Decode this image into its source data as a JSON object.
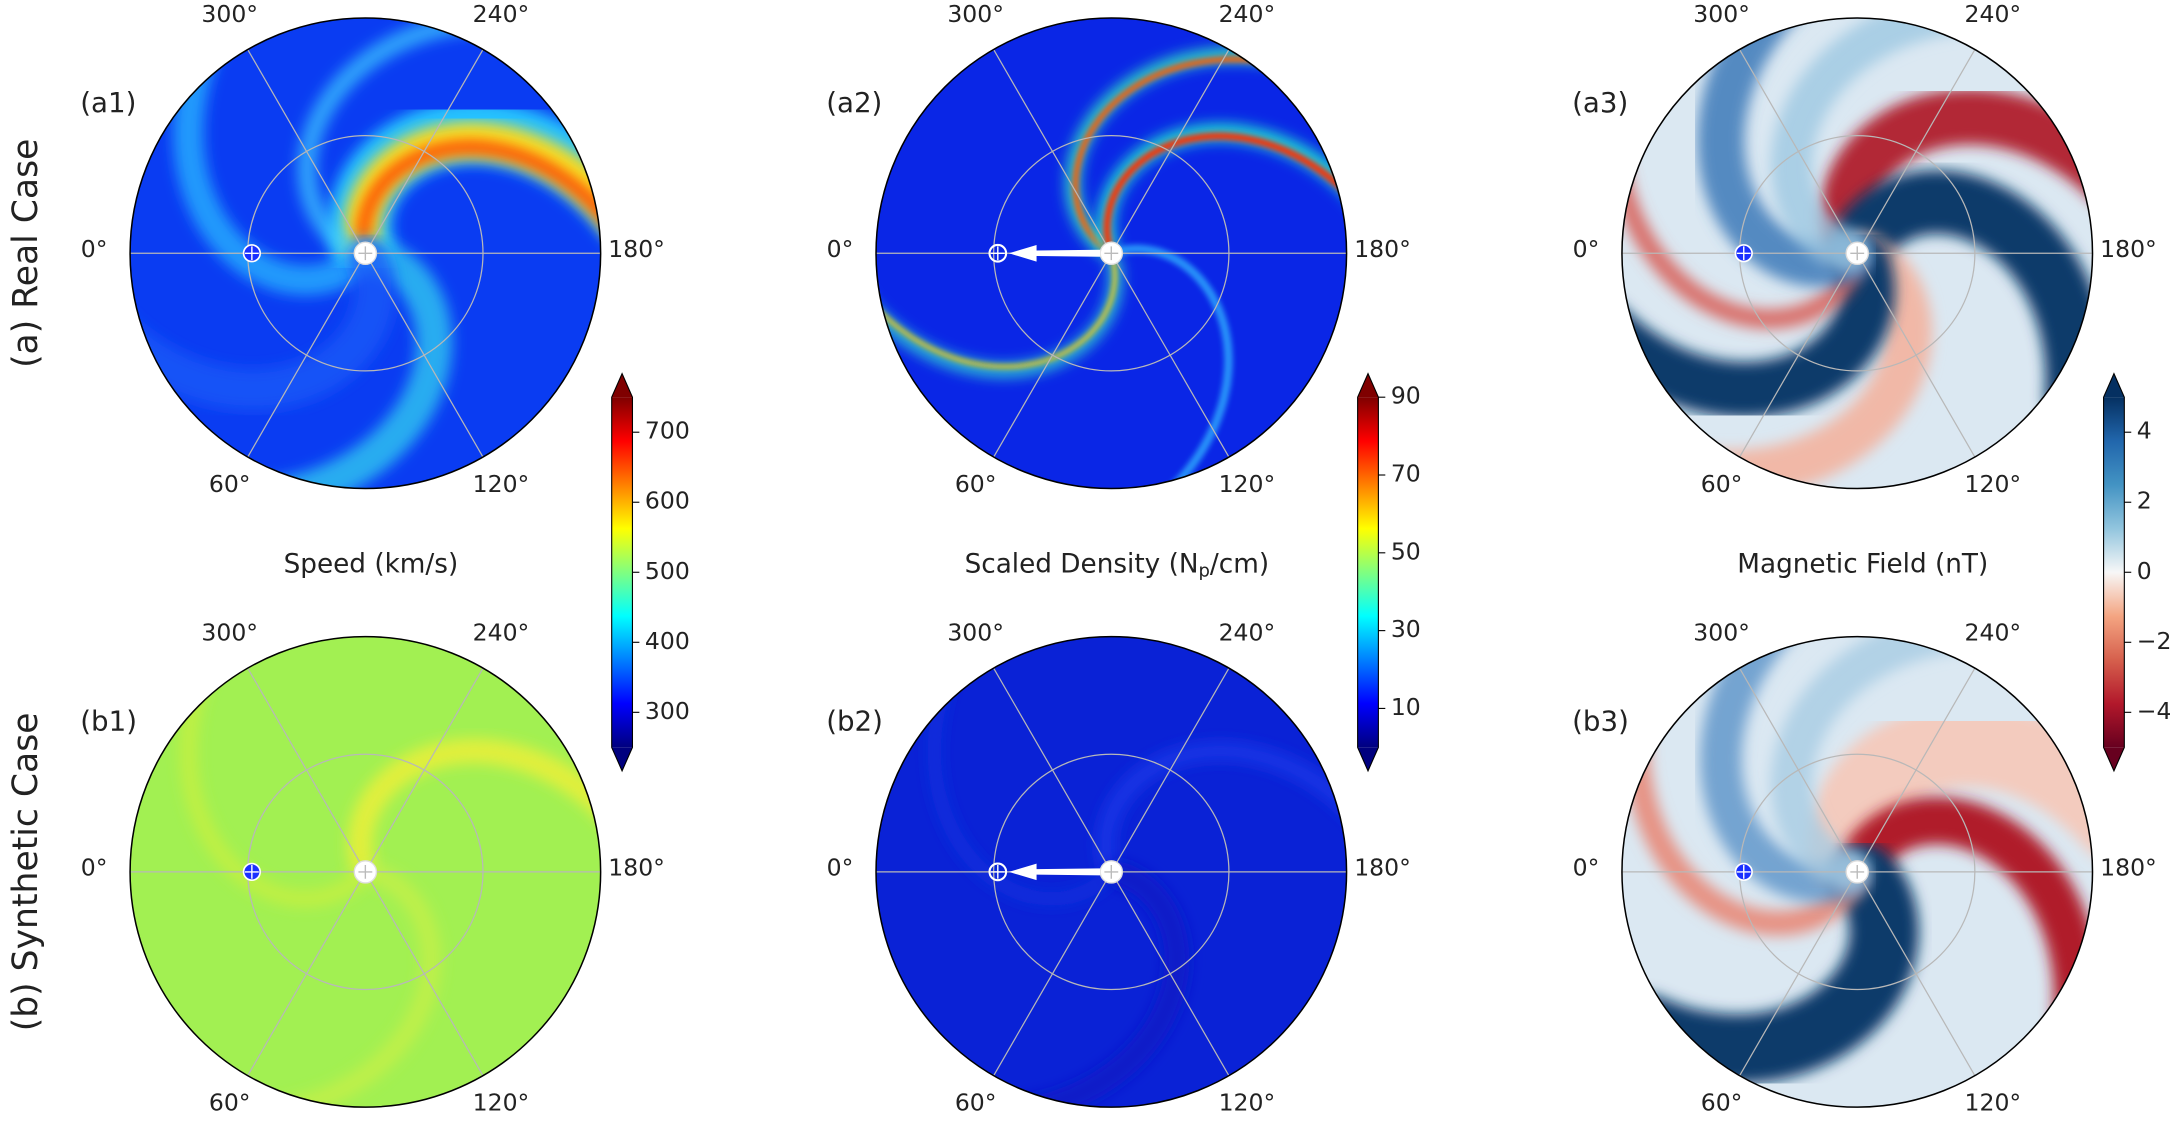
{
  "row_labels": [
    "(a) Real Case",
    "(b) Synthetic Case"
  ],
  "panels": [
    "(a1)",
    "(a2)",
    "(a3)",
    "(b1)",
    "(b2)",
    "(b3)"
  ],
  "angle_labels": [
    {
      "value": 0,
      "label": "0°"
    },
    {
      "value": 60,
      "label": "60°"
    },
    {
      "value": 120,
      "label": "120°"
    },
    {
      "value": 180,
      "label": "180°"
    },
    {
      "value": 240,
      "label": "240°"
    },
    {
      "value": 300,
      "label": "300°"
    }
  ],
  "colorbars": [
    {
      "label": [
        "Speed (km/s)"
      ],
      "range": [
        250,
        750
      ],
      "ticks": [
        300,
        400,
        500,
        600,
        700
      ],
      "colormap": "jet"
    },
    {
      "label": [
        "Scaled Density (N",
        "p",
        "/cm)"
      ],
      "range": [
        0,
        90
      ],
      "ticks": [
        10,
        30,
        50,
        70,
        90
      ],
      "colormap": "jet"
    },
    {
      "label": [
        "Magnetic Field (nT)"
      ],
      "range": [
        -5,
        5
      ],
      "ticks": [
        {
          "value": -4,
          "label": "−4"
        },
        {
          "value": -2,
          "label": "−2"
        },
        0,
        2,
        4
      ],
      "colormap": "RdBu"
    }
  ]
}
